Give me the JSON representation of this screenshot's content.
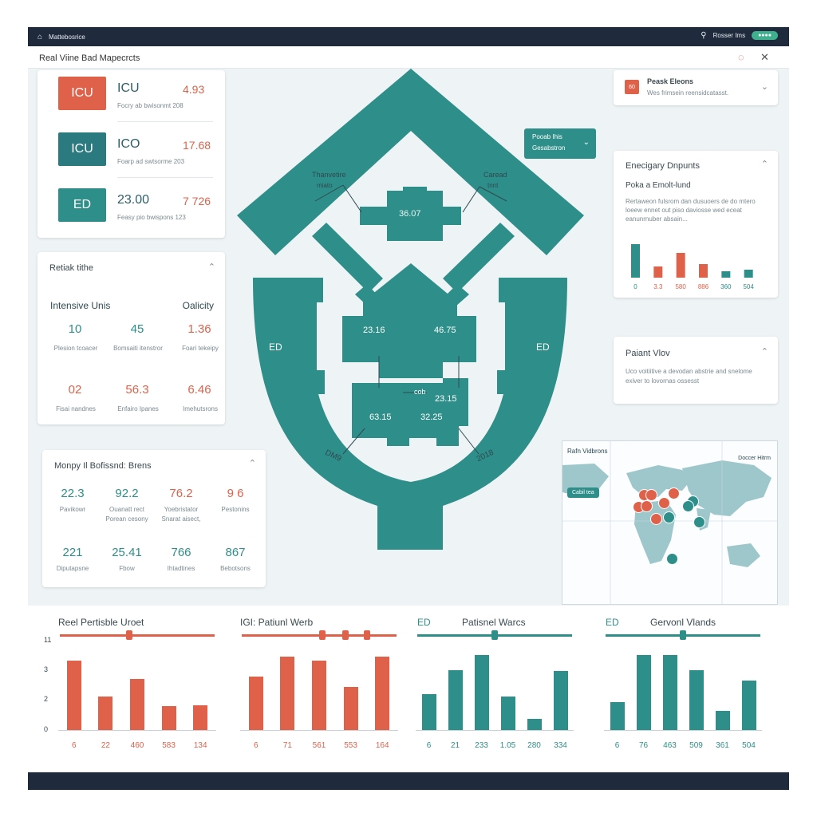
{
  "topbar": {
    "app_name": "Mattebosrice",
    "user": "Rosser Ims",
    "status_pill": "●●●●"
  },
  "titlebar": {
    "title": "Real Viine Bad Mapecrcts",
    "help_icon": "help-circle-icon",
    "close_icon": "close-icon"
  },
  "unit_cards": [
    {
      "badge": "ICU",
      "name": "ICU",
      "value": "4.93",
      "sub": "Focry ab bwisonmt  208",
      "badge_color": "#e0614a",
      "value_color": "#e0614a"
    },
    {
      "badge": "ICU",
      "name": "ICO",
      "value": "17.68",
      "sub": "Foarp ad swtsorme  203",
      "badge_color": "#2b7a80",
      "value_color": "#e0614a"
    },
    {
      "badge": "ED",
      "name": "23.00",
      "value": "7 726",
      "sub": "Feasy pio bwispons  123",
      "badge_color": "#2e8e89",
      "value_color": "#e0614a"
    }
  ],
  "intensive_card": {
    "title": "Retiak tithe",
    "left_heading": "Intensive Unis",
    "right_heading": "Oalicity",
    "rows": [
      [
        {
          "v": "10",
          "l": "Plesion tcoacer",
          "c": "teal"
        },
        {
          "v": "45",
          "l": "Bomsaiti itenstror",
          "c": "teal"
        },
        {
          "v": "1.36",
          "l": "Foari tekeipy",
          "c": "coral"
        }
      ],
      [
        {
          "v": "02",
          "l": "Fisai nandnes",
          "c": "coral"
        },
        {
          "v": "56.3",
          "l": "Enfairo Ipanes",
          "c": "coral"
        },
        {
          "v": "6.46",
          "l": "Imehutsrons",
          "c": "coral"
        }
      ]
    ]
  },
  "monthly_card": {
    "title": "Monpy Il Bofissnd: Brens",
    "rows": [
      [
        {
          "v": "22.3",
          "l": "Pavikowr",
          "l2": "",
          "c": "teal"
        },
        {
          "v": "92.2",
          "l": "Ouanatt rect",
          "l2": "Porean cesony",
          "c": "teal"
        },
        {
          "v": "76.2",
          "l": "Yoebristator",
          "l2": "Snarat aisect,",
          "c": "coral"
        },
        {
          "v": "9 6",
          "l": "Pestonins",
          "l2": "",
          "c": "coral"
        }
      ],
      [
        {
          "v": "221",
          "l": "Diputapsne",
          "l2": "",
          "c": "teal"
        },
        {
          "v": "25.41",
          "l": "Fbow",
          "l2": "",
          "c": "teal"
        },
        {
          "v": "766",
          "l": "Ihtadtines",
          "l2": "",
          "c": "teal"
        },
        {
          "v": "867",
          "l": "Bebotsons",
          "l2": "",
          "c": "teal"
        }
      ]
    ]
  },
  "floorplan": {
    "dropdown": {
      "line1": "Pooab Ihis",
      "line2": "Gesabstron"
    },
    "labels": {
      "top_left": "Thanvetire",
      "top_left2": "miato",
      "top_right": "Caread",
      "top_right2": "tnnt",
      "center_top": "36.07",
      "mid_left": "23.16",
      "mid_right": "46.75",
      "lower_center": "cob",
      "lower_right": "23.15",
      "bottom_left_val": "63.15",
      "bottom_right_val": "32.25",
      "ed_left": "ED",
      "ed_right": "ED",
      "arc_left": "DM9",
      "arc_right": "2018"
    }
  },
  "peak_card": {
    "badge": "60",
    "title": "Peask Eleons",
    "sub": "Wes frimsein reensidcatasst."
  },
  "emergency_card": {
    "title": "Enecigary Dnpunts",
    "subtitle": "Poka a Emolt-lund",
    "desc": "Rertaweon fulsrom dan dusuoers de do mtero loeew ennet out piso daviosse wed eceat eanunrnuber absain...",
    "chart_data": {
      "type": "bar",
      "categories": [
        "0",
        "3.3",
        "580",
        "886",
        "360",
        "504"
      ],
      "values": [
        4.2,
        1.4,
        3.1,
        1.7,
        0.8,
        1.0
      ],
      "colors": [
        "#2e8e89",
        "#e0614a",
        "#e0614a",
        "#e0614a",
        "#2e8e89",
        "#2e8e89"
      ],
      "ylim": [
        0,
        5
      ],
      "grid": false
    }
  },
  "patient_card": {
    "title": "Paiant Vlov",
    "desc": "Uco voitiitive a devodan abstrie and snelome exiver to lovornas ossesst"
  },
  "map": {
    "title": "Rafn Vidbrons",
    "right_label": "Doccer Hitrm",
    "tag": "Cabil tea",
    "markers": [
      {
        "id": "m1",
        "c": "coral"
      },
      {
        "id": "m2",
        "c": "coral"
      },
      {
        "id": "m3",
        "c": "coral"
      },
      {
        "id": "m4",
        "c": "coral"
      },
      {
        "id": "m5",
        "c": "coral"
      },
      {
        "id": "m6",
        "c": "coral"
      },
      {
        "id": "m7",
        "c": "teal"
      },
      {
        "id": "m8",
        "c": "teal"
      },
      {
        "id": "m9",
        "c": "teal"
      },
      {
        "id": "m10",
        "c": "teal"
      },
      {
        "id": "m11",
        "c": "coral"
      },
      {
        "id": "m12",
        "c": "teal"
      }
    ]
  },
  "bottom_charts": {
    "y_ticks": [
      "11",
      "3",
      "2",
      "0"
    ],
    "chart_data": [
      {
        "type": "bar",
        "title": "Reel Pertisble Uroet",
        "color": "#e0614a",
        "categories": [
          "6",
          "22",
          "460",
          "583",
          "134"
        ],
        "values": [
          9.6,
          4.6,
          7.0,
          3.3,
          3.4
        ],
        "ylim": [
          0,
          11
        ],
        "slider": [
          0.45
        ]
      },
      {
        "type": "bar",
        "title": "IGI: Patiunl Werb",
        "color": "#e0614a",
        "categories": [
          "6",
          "71",
          "561",
          "553",
          "164"
        ],
        "values": [
          7.4,
          10.1,
          9.6,
          5.9,
          10.1
        ],
        "ylim": [
          0,
          11
        ],
        "slider": [
          0.52,
          0.67,
          0.81
        ]
      },
      {
        "type": "bar",
        "title": "Patisnel Warcs",
        "prefix": "ED",
        "color": "#2e8e89",
        "categories": [
          "6",
          "21",
          "233",
          "1.05",
          "280",
          "334"
        ],
        "values": [
          5.0,
          8.2,
          10.3,
          4.6,
          1.5,
          8.1
        ],
        "ylim": [
          0,
          11
        ],
        "slider": [
          0.5
        ]
      },
      {
        "type": "bar",
        "title": "Gervonl Vlands",
        "prefix": "ED",
        "color": "#2e8e89",
        "categories": [
          "6",
          "76",
          "463",
          "509",
          "361",
          "504"
        ],
        "values": [
          3.8,
          10.3,
          10.3,
          8.2,
          2.6,
          6.8
        ],
        "ylim": [
          0,
          11
        ],
        "slider": [
          0.5
        ]
      }
    ]
  }
}
